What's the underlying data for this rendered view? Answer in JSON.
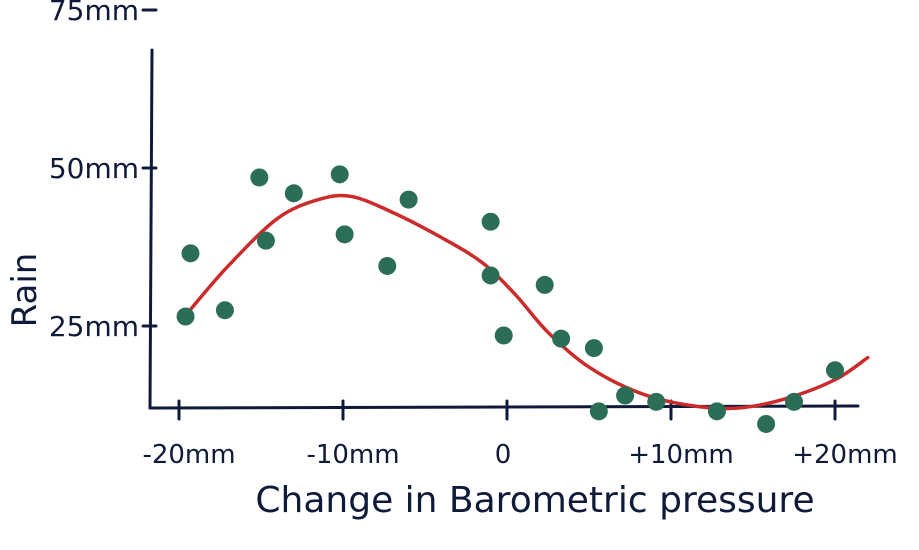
{
  "chart_data": {
    "type": "scatter",
    "xlabel": "Change in Barometric pressure",
    "ylabel": "Rain",
    "x_ticks": [
      {
        "value": -20,
        "label": "-20mm"
      },
      {
        "value": -10,
        "label": "-10mm"
      },
      {
        "value": 0,
        "label": "0"
      },
      {
        "value": 10,
        "label": "+10mm"
      },
      {
        "value": 20,
        "label": "+20mm"
      }
    ],
    "y_ticks": [
      {
        "value": 25,
        "label": "25mm"
      },
      {
        "value": 50,
        "label": "50mm"
      },
      {
        "value": 75,
        "label": "75mm"
      }
    ],
    "xlim": [
      -21,
      21
    ],
    "ylim": [
      5,
      80
    ],
    "grid": false,
    "colors": {
      "points": "#2b6e55",
      "curve": "#cc2b2b",
      "axes": "#0f1a3a"
    },
    "series": [
      {
        "type": "scatter",
        "points": [
          [
            -19.6,
            26.5
          ],
          [
            -19.3,
            36.5
          ],
          [
            -17.2,
            27.5
          ],
          [
            -15.1,
            48.5
          ],
          [
            -14.7,
            38.5
          ],
          [
            -13.0,
            46.0
          ],
          [
            -10.2,
            49.0
          ],
          [
            -9.9,
            39.5
          ],
          [
            -7.3,
            34.5
          ],
          [
            -6.0,
            45.0
          ],
          [
            -1.0,
            41.5
          ],
          [
            -1.0,
            33.0
          ],
          [
            -0.2,
            23.5
          ],
          [
            2.3,
            31.5
          ],
          [
            3.3,
            23.0
          ],
          [
            5.3,
            21.5
          ],
          [
            5.6,
            11.5
          ],
          [
            7.2,
            14.0
          ],
          [
            9.1,
            13.0
          ],
          [
            12.8,
            11.5
          ],
          [
            15.8,
            9.5
          ],
          [
            17.5,
            13.0
          ],
          [
            20.0,
            18.0
          ]
        ]
      },
      {
        "type": "line",
        "points": [
          [
            -19.5,
            27.0
          ],
          [
            -17.0,
            34.5
          ],
          [
            -14.0,
            42.0
          ],
          [
            -11.5,
            45.0
          ],
          [
            -9.5,
            45.5
          ],
          [
            -7.0,
            43.0
          ],
          [
            -4.0,
            39.0
          ],
          [
            -1.5,
            35.0
          ],
          [
            0.5,
            30.0
          ],
          [
            2.5,
            24.0
          ],
          [
            5.0,
            18.5
          ],
          [
            8.0,
            14.5
          ],
          [
            11.0,
            12.5
          ],
          [
            14.0,
            12.0
          ],
          [
            17.0,
            13.5
          ],
          [
            20.0,
            16.5
          ],
          [
            22.0,
            20.0
          ]
        ]
      }
    ]
  }
}
